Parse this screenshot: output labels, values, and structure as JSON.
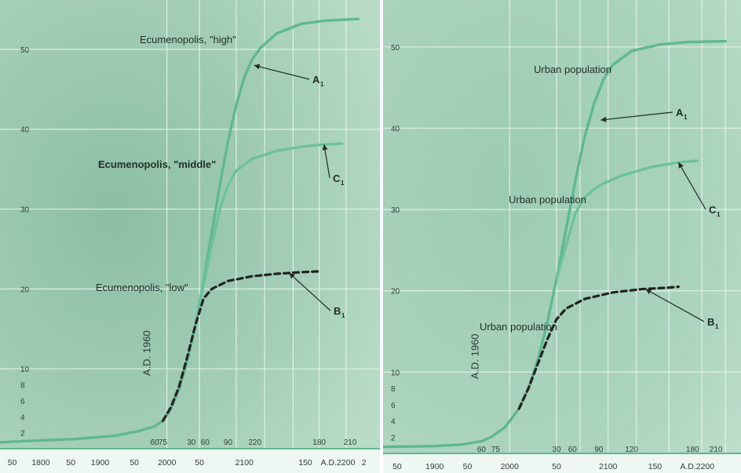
{
  "chart_data": [
    {
      "type": "line",
      "title": "",
      "xlabel": "",
      "ylabel": "",
      "xlim": [
        1760,
        2215
      ],
      "ylim": [
        0,
        55
      ],
      "grid": true,
      "marker_label": "A.D. 1960",
      "marker_x": 1960,
      "y_ticks": [
        2,
        4,
        6,
        8,
        10,
        20,
        30,
        40,
        50
      ],
      "x_tick_labels": [
        {
          "x": 1775,
          "label": "50"
        },
        {
          "x": 1810,
          "label": "1800"
        },
        {
          "x": 1847,
          "label": "50"
        },
        {
          "x": 1883,
          "label": "1900"
        },
        {
          "x": 1925,
          "label": "50"
        },
        {
          "x": 1965,
          "label": "2000"
        },
        {
          "x": 2005,
          "label": "50"
        },
        {
          "x": 2060,
          "label": "2100"
        },
        {
          "x": 2135,
          "label": "150"
        },
        {
          "x": 2175,
          "label": "A.D.2200"
        },
        {
          "x": 2207,
          "label": "2"
        }
      ],
      "inner_tick_labels": [
        {
          "x": 1950,
          "label": "60"
        },
        {
          "x": 1960,
          "label": "75"
        },
        {
          "x": 1995,
          "label": "30"
        },
        {
          "x": 2012,
          "label": "60"
        },
        {
          "x": 2040,
          "label": "90"
        },
        {
          "x": 2073,
          "label": "220"
        },
        {
          "x": 2152,
          "label": "180"
        },
        {
          "x": 2190,
          "label": "210"
        }
      ],
      "series": [
        {
          "name": "A1",
          "style": "solid",
          "color": "#5fb892",
          "x": [
            1760,
            1800,
            1850,
            1900,
            1930,
            1950,
            1960,
            1970,
            1980,
            1990,
            2000,
            2010,
            2020,
            2030,
            2040,
            2050,
            2060,
            2070,
            2080,
            2100,
            2130,
            2160,
            2200
          ],
          "y": [
            0.8,
            1.0,
            1.2,
            1.6,
            2.2,
            2.8,
            3.5,
            5.0,
            7.5,
            11.0,
            15.5,
            21.0,
            27.0,
            33.0,
            38.5,
            43.0,
            46.5,
            48.8,
            50.2,
            52.0,
            53.2,
            53.6,
            53.8
          ]
        },
        {
          "name": "C1",
          "style": "solid",
          "color": "#6cc29e",
          "x": [
            2000,
            2010,
            2020,
            2030,
            2040,
            2050,
            2070,
            2100,
            2130,
            2160,
            2180
          ],
          "y": [
            15.5,
            20.5,
            25.5,
            30.0,
            33.0,
            34.8,
            36.3,
            37.3,
            37.8,
            38.1,
            38.2
          ]
        },
        {
          "name": "B1",
          "style": "dashed",
          "color": "#222222",
          "x": [
            1960,
            1970,
            1980,
            1990,
            2000,
            2010,
            2020,
            2040,
            2070,
            2100,
            2130,
            2150
          ],
          "y": [
            3.5,
            5.2,
            7.8,
            11.5,
            15.5,
            18.8,
            20.0,
            21.0,
            21.6,
            21.9,
            22.1,
            22.2
          ]
        }
      ],
      "labels": {
        "high": "Ecumenopolis, \"high\"",
        "middle": "Ecumenopolis, \"middle\"",
        "low": "Ecumenopolis, \"low\"",
        "a": "A",
        "b": "B",
        "c": "C",
        "sub": "1"
      }
    },
    {
      "type": "line",
      "title": "",
      "xlabel": "",
      "ylabel": "",
      "xlim": [
        1845,
        2220
      ],
      "ylim": [
        0,
        55
      ],
      "grid": true,
      "marker_label": "A.D. 1960",
      "marker_x": 1960,
      "y_ticks": [
        2,
        4,
        6,
        8,
        10,
        20,
        30,
        40,
        50
      ],
      "x_tick_labels": [
        {
          "x": 1860,
          "label": "50"
        },
        {
          "x": 1900,
          "label": "1900"
        },
        {
          "x": 1935,
          "label": "50"
        },
        {
          "x": 1980,
          "label": "2000"
        },
        {
          "x": 2030,
          "label": "50"
        },
        {
          "x": 2085,
          "label": "2100"
        },
        {
          "x": 2135,
          "label": "150"
        },
        {
          "x": 2180,
          "label": "A.D.2200"
        }
      ],
      "inner_tick_labels": [
        {
          "x": 1950,
          "label": "60"
        },
        {
          "x": 1965,
          "label": "75"
        },
        {
          "x": 2030,
          "label": "30"
        },
        {
          "x": 2047,
          "label": "60"
        },
        {
          "x": 2075,
          "label": "90"
        },
        {
          "x": 2110,
          "label": "120"
        },
        {
          "x": 2175,
          "label": "180"
        },
        {
          "x": 2200,
          "label": "210"
        }
      ],
      "series": [
        {
          "name": "A1",
          "style": "solid",
          "color": "#5fb892",
          "x": [
            1845,
            1900,
            1930,
            1950,
            1960,
            1975,
            1990,
            2000,
            2010,
            2020,
            2030,
            2040,
            2050,
            2060,
            2070,
            2080,
            2090,
            2110,
            2140,
            2170,
            2210
          ],
          "y": [
            0.8,
            0.9,
            1.1,
            1.5,
            2.0,
            3.2,
            5.5,
            8.0,
            11.5,
            16.0,
            21.5,
            27.5,
            33.5,
            39.0,
            43.0,
            46.0,
            47.8,
            49.5,
            50.3,
            50.6,
            50.7
          ]
        },
        {
          "name": "C1",
          "style": "solid",
          "color": "#6cc29e",
          "x": [
            2030,
            2040,
            2050,
            2060,
            2070,
            2080,
            2100,
            2130,
            2160,
            2180
          ],
          "y": [
            21.5,
            25.5,
            29.5,
            31.5,
            32.5,
            33.2,
            34.2,
            35.2,
            35.8,
            36.0
          ]
        },
        {
          "name": "B1",
          "style": "dashed",
          "color": "#222222",
          "x": [
            1990,
            2000,
            2010,
            2020,
            2030,
            2040,
            2060,
            2090,
            2120,
            2150,
            2160
          ],
          "y": [
            5.5,
            8.0,
            11.0,
            14.0,
            16.5,
            17.8,
            19.0,
            19.8,
            20.2,
            20.4,
            20.5
          ]
        }
      ],
      "labels": {
        "high": "Urban population",
        "middle": "Urban population",
        "low": "Urban population",
        "a": "A",
        "b": "B",
        "c": "C",
        "sub": "1"
      }
    }
  ]
}
